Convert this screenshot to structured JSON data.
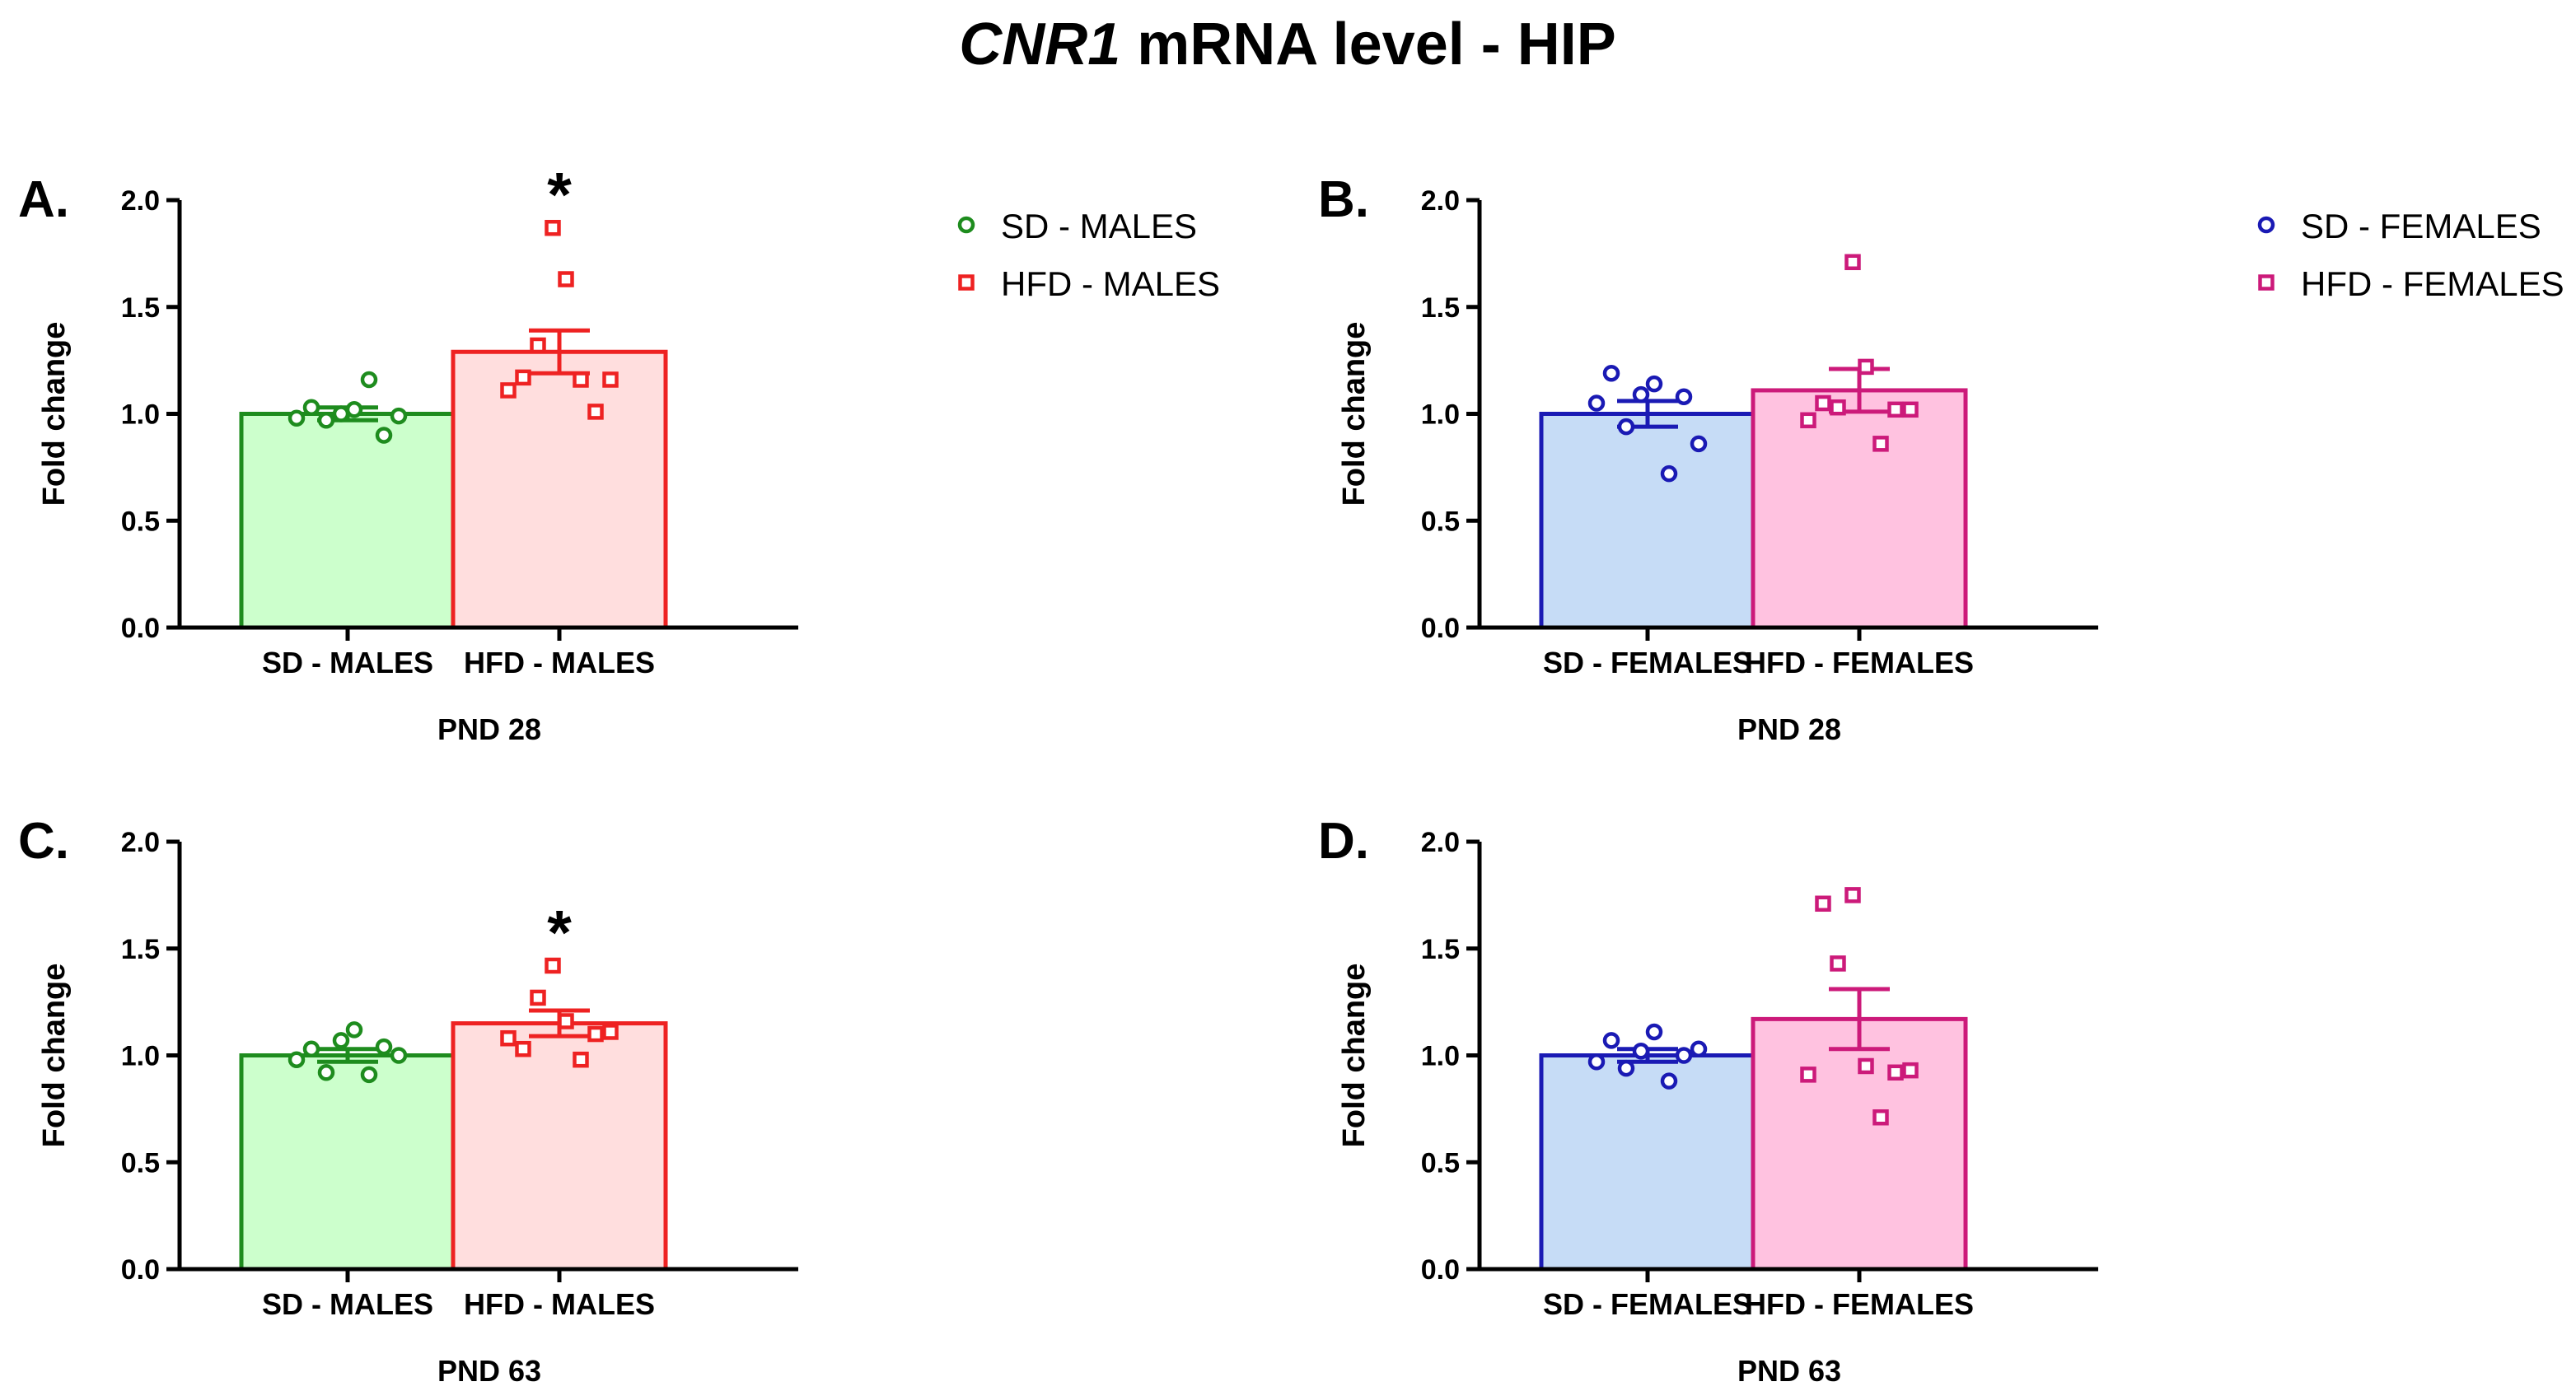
{
  "chart_data": {
    "type": "bar",
    "title_gene": "CNR1",
    "title_rest": " mRNA level - HIP",
    "panels": [
      {
        "label": "A.",
        "ylabel": "Fold change",
        "xlabel": "PND 28",
        "ylim": [
          0,
          2.0
        ],
        "yticks": [
          "0.0",
          "0.5",
          "1.0",
          "1.5",
          "2.0"
        ],
        "categories": [
          "SD - MALES",
          "HFD - MALES"
        ],
        "legend": [
          "SD - MALES",
          "HFD - MALES"
        ],
        "bars": [
          {
            "name": "SD - MALES",
            "mean": 1.0,
            "sem": 0.03,
            "marker": "circle",
            "stroke": "#1e8c1e",
            "fill": "#ccffcc",
            "significant": false,
            "points": [
              0.98,
              1.03,
              0.97,
              1.0,
              1.02,
              1.16,
              0.9,
              0.99
            ]
          },
          {
            "name": "HFD - MALES",
            "mean": 1.29,
            "sem": 0.1,
            "marker": "square",
            "stroke": "#ee2222",
            "fill": "#ffdede",
            "significant": true,
            "points": [
              1.11,
              1.17,
              1.32,
              1.87,
              1.63,
              1.16,
              1.01,
              1.16
            ]
          }
        ]
      },
      {
        "label": "B.",
        "ylabel": "Fold change",
        "xlabel": "PND 28",
        "ylim": [
          0,
          2.0
        ],
        "yticks": [
          "0.0",
          "0.5",
          "1.0",
          "1.5",
          "2.0"
        ],
        "categories": [
          "SD - FEMALES",
          "HFD - FEMALES"
        ],
        "legend": [
          "SD - FEMALES",
          "HFD - FEMALES"
        ],
        "bars": [
          {
            "name": "SD - FEMALES",
            "mean": 1.0,
            "sem": 0.06,
            "marker": "circle",
            "stroke": "#1a1ab4",
            "fill": "#c6dcf6",
            "significant": false,
            "points": [
              1.05,
              1.19,
              0.94,
              1.09,
              1.14,
              0.72,
              1.08,
              0.86
            ]
          },
          {
            "name": "HFD - FEMALES",
            "mean": 1.11,
            "sem": 0.1,
            "marker": "square",
            "stroke": "#cc1a7a",
            "fill": "#ffc2e0",
            "significant": false,
            "points": [
              0.97,
              1.05,
              1.03,
              1.71,
              1.22,
              0.86,
              1.02,
              1.02
            ]
          }
        ]
      },
      {
        "label": "C.",
        "ylabel": "Fold change",
        "xlabel": "PND 63",
        "ylim": [
          0,
          2.0
        ],
        "yticks": [
          "0.0",
          "0.5",
          "1.0",
          "1.5",
          "2.0"
        ],
        "categories": [
          "SD - MALES",
          "HFD - MALES"
        ],
        "legend": [],
        "bars": [
          {
            "name": "SD - MALES",
            "mean": 1.0,
            "sem": 0.03,
            "marker": "circle",
            "stroke": "#1e8c1e",
            "fill": "#ccffcc",
            "significant": false,
            "points": [
              0.98,
              1.03,
              0.92,
              1.07,
              1.12,
              0.91,
              1.04,
              1.0
            ]
          },
          {
            "name": "HFD - MALES",
            "mean": 1.15,
            "sem": 0.06,
            "marker": "square",
            "stroke": "#ee2222",
            "fill": "#ffdede",
            "significant": true,
            "points": [
              1.08,
              1.03,
              1.27,
              1.42,
              1.16,
              0.98,
              1.1,
              1.11
            ]
          }
        ]
      },
      {
        "label": "D.",
        "ylabel": "Fold change",
        "xlabel": "PND 63",
        "ylim": [
          0,
          2.0
        ],
        "yticks": [
          "0.0",
          "0.5",
          "1.0",
          "1.5",
          "2.0"
        ],
        "categories": [
          "SD - FEMALES",
          "HFD - FEMALES"
        ],
        "legend": [],
        "bars": [
          {
            "name": "SD - FEMALES",
            "mean": 1.0,
            "sem": 0.03,
            "marker": "circle",
            "stroke": "#1a1ab4",
            "fill": "#c6dcf6",
            "significant": false,
            "points": [
              0.97,
              1.07,
              0.94,
              1.02,
              1.11,
              0.88,
              1.0,
              1.03
            ]
          },
          {
            "name": "HFD - FEMALES",
            "mean": 1.17,
            "sem": 0.14,
            "marker": "square",
            "stroke": "#cc1a7a",
            "fill": "#ffc2e0",
            "significant": false,
            "points": [
              0.91,
              1.71,
              1.43,
              1.75,
              0.95,
              0.71,
              0.92,
              0.93
            ]
          }
        ]
      }
    ]
  }
}
